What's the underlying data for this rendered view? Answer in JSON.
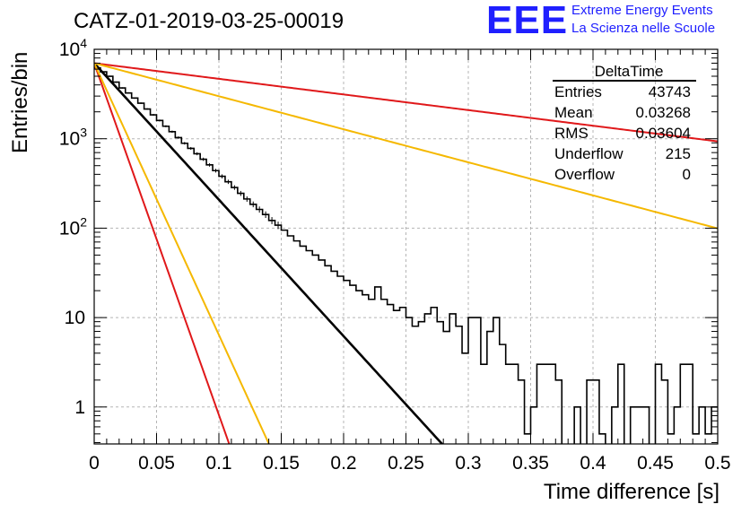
{
  "title": "CATZ-01-2019-03-25-00019",
  "logo": {
    "mark": "EEE",
    "line1": "Extreme Energy Events",
    "line2": "La Scienza nelle Scuole",
    "color": "#1f1fff"
  },
  "axes": {
    "ylabel": "Entries/bin",
    "xlabel": "Time difference [s]",
    "x_ticks": [
      "0",
      "0.05",
      "0.1",
      "0.15",
      "0.2",
      "0.25",
      "0.3",
      "0.35",
      "0.4",
      "0.45",
      "0.5"
    ],
    "y_ticks": [
      "10^4",
      "10^3",
      "10^2",
      "10",
      "1"
    ]
  },
  "stats": {
    "name": "DeltaTime",
    "rows": [
      {
        "label": "Entries",
        "value": "43743"
      },
      {
        "label": "Mean",
        "value": "0.03268"
      },
      {
        "label": "RMS",
        "value": "0.03604"
      },
      {
        "label": "Underflow",
        "value": "215"
      },
      {
        "label": "Overflow",
        "value": "0"
      }
    ]
  },
  "chart_data": {
    "type": "line",
    "xlim": [
      0,
      0.5
    ],
    "ylim": [
      0.35,
      12000
    ],
    "yscale": "log",
    "grid": true,
    "bin_width": 0.005,
    "series": [
      {
        "style": "histogram",
        "color": "#000000",
        "values": [
          6200,
          5600,
          5000,
          4300,
          3700,
          3250,
          2850,
          2500,
          2150,
          1850,
          1600,
          1380,
          1200,
          1030,
          890,
          780,
          680,
          590,
          510,
          440,
          380,
          330,
          285,
          245,
          212,
          185,
          162,
          142,
          122,
          108,
          95,
          82,
          72,
          63,
          56,
          50,
          44,
          38,
          33,
          29,
          26,
          23,
          20,
          18,
          16,
          22,
          16,
          14,
          12,
          13,
          10,
          8,
          9,
          11,
          13,
          9,
          7,
          11,
          8,
          4,
          10,
          10,
          3,
          7,
          10,
          5,
          3,
          3,
          2,
          0.5,
          1,
          3,
          3,
          3,
          2,
          0,
          0,
          1,
          0,
          2,
          2,
          0.5,
          0,
          1,
          3,
          0,
          1,
          1,
          1,
          0,
          3,
          2,
          0.5,
          1,
          3,
          3,
          0.5,
          1,
          0.5,
          1
        ]
      },
      {
        "style": "fit",
        "color": "#000000",
        "A": 7000,
        "tau": 0.02845
      },
      {
        "style": "fit",
        "color": "#e0181a",
        "A": 7000,
        "tau": 0.01104
      },
      {
        "style": "fit",
        "color": "#f5b800",
        "A": 7000,
        "tau": 0.01429
      },
      {
        "style": "fit",
        "color": "#e0181a",
        "A": 7000,
        "tau": 0.2483
      },
      {
        "style": "fit",
        "color": "#f5b800",
        "A": 7000,
        "tau": 0.1175
      }
    ]
  }
}
